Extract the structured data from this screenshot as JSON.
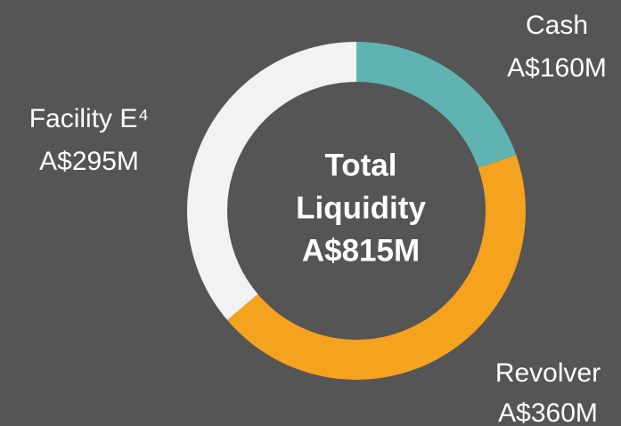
{
  "chart_data": {
    "type": "donut",
    "categories": [
      "Cash",
      "Revolver",
      "Facility E⁴"
    ],
    "values": [
      160,
      360,
      295
    ],
    "value_labels": [
      "A$160M",
      "A$360M",
      "A$295M"
    ],
    "colors": [
      "#5fb3b0",
      "#f5a21e",
      "#f2f2f2"
    ],
    "center_label": [
      "Total",
      "Liquidity",
      "A$815M"
    ]
  }
}
